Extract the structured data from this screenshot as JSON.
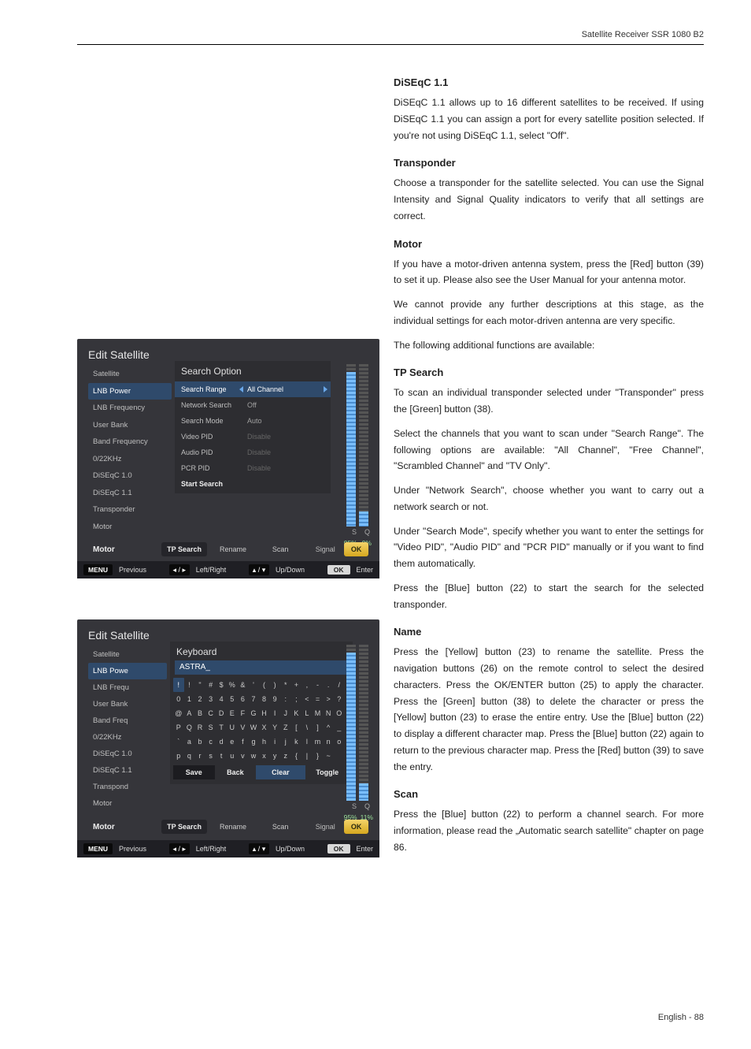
{
  "header": {
    "product": "Satellite Receiver SSR 1080 B2"
  },
  "footer": {
    "text": "English  -  88"
  },
  "doc": {
    "s1_title": "DiSEqC 1.1",
    "s1_p1": "DiSEqC 1.1 allows up to 16 different satellites to be received. If using DiSEqC 1.1 you can assign a port for every satellite position selected. If you're not using DiSEqC 1.1, select \"Off\".",
    "s2_title": "Transponder",
    "s2_p1": "Choose a transponder for the satellite selected. You can use the Signal Intensity and Signal Quality indicators to verify that all settings are correct.",
    "s3_title": "Motor",
    "s3_p1": "If you have a motor-driven antenna system, press the [Red] button (39) to set it up. Please also see the User Manual for your antenna motor.",
    "s3_p2": "We cannot provide any further descriptions at this stage, as the individual settings for each motor-driven antenna are very specific.",
    "s3_p3": "The following additional functions are available:",
    "s4_title": "TP Search",
    "s4_p1": "To scan an individual transponder selected under \"Transponder\" press the [Green] button (38).",
    "s4_p2": "Select the channels that you want to scan under \"Search Range\". The following options are available: \"All Channel\", \"Free Channel\", \"Scrambled Channel\" and \"TV Only\".",
    "s4_p3": "Under \"Network Search\", choose whether you want to carry out a network search or not.",
    "s4_p4": "Under \"Search Mode\", specify whether you want to enter the settings for \"Video PID\", \"Audio PID\" and \"PCR PID\" manually or if you want to find them automatically.",
    "s4_p5": "Press the [Blue] button (22) to start the search for the selected transponder.",
    "s5_title": "Name",
    "s5_p1": "Press the [Yellow] button (23) to rename the satellite. Press the navigation buttons (26) on the remote control to select the desired characters. Press the OK/ENTER button (25) to apply the character. Press the [Green] button (38) to delete the character or press the [Yellow] button (23) to erase the entire entry. Use the [Blue] button (22) to display a different character map. Press the [Blue] button (22) again to return to the previous character map. Press the [Red] button (39) to save the entry.",
    "s6_title": "Scan",
    "s6_p1": "Press the [Blue] button (22) to perform a channel search. For more information, please read the „Automatic search satellite\" chapter on page 86."
  },
  "shot1": {
    "title": "Edit Satellite",
    "left_items": [
      "Satellite",
      "LNB Power",
      "LNB Frequency",
      "User Bank",
      "Band Frequency",
      "0/22KHz",
      "DiSEqC 1.0",
      "DiSEqC 1.1",
      "Transponder",
      "Motor"
    ],
    "left_selected_index": 1,
    "panel_title": "Search Option",
    "rows": [
      {
        "label": "Search Range",
        "value": "All Channel",
        "selected": true
      },
      {
        "label": "Network Search",
        "value": "Off"
      },
      {
        "label": "Search Mode",
        "value": "Auto"
      },
      {
        "label": "Video PID",
        "value": "Disable",
        "dim": true
      },
      {
        "label": "Audio PID",
        "value": "Disable",
        "dim": true
      },
      {
        "label": "PCR PID",
        "value": "Disable",
        "dim": true
      },
      {
        "label": "Start Search",
        "value": "",
        "bold": true
      }
    ],
    "sq_labels": {
      "s": "S",
      "q": "Q"
    },
    "pct": {
      "s": "95%",
      "q": "9%"
    },
    "signal_fill_pct": {
      "s": 95,
      "q": 9
    },
    "bottom": {
      "motor": "Motor",
      "tp": "TP Search",
      "rename": "Rename",
      "scan": "Scan",
      "signal": "Signal",
      "ok": "OK"
    },
    "nav": {
      "menu": "MENU",
      "prev": "Previous",
      "lr": "◂ / ▸",
      "lr_text": "Left/Right",
      "ud": "▴ / ▾",
      "ud_text": "Up/Down",
      "ok": "OK",
      "enter": "Enter"
    }
  },
  "shot2": {
    "title": "Edit Satellite",
    "left_items": [
      "Satellite",
      "LNB Powe",
      "LNB Frequ",
      "User Bank",
      "Band Freq",
      "0/22KHz",
      "DiSEqC 1.0",
      "DiSEqC 1.1",
      "Transpond",
      "Motor"
    ],
    "left_selected_index": 1,
    "kbd_title": "Keyboard",
    "kbd_input": "ASTRA_",
    "rows": [
      [
        "!",
        "!",
        "\"",
        "#",
        "$",
        "%",
        "&",
        "'",
        "(",
        ")",
        "*",
        "+",
        ",",
        "-",
        ".",
        "/"
      ],
      [
        "0",
        "1",
        "2",
        "3",
        "4",
        "5",
        "6",
        "7",
        "8",
        "9",
        ":",
        ";",
        "<",
        "=",
        ">",
        "?"
      ],
      [
        "@",
        "A",
        "B",
        "C",
        "D",
        "E",
        "F",
        "G",
        "H",
        "I",
        "J",
        "K",
        "L",
        "M",
        "N",
        "O"
      ],
      [
        "P",
        "Q",
        "R",
        "S",
        "T",
        "U",
        "V",
        "W",
        "X",
        "Y",
        "Z",
        "[",
        "\\",
        "]",
        "^",
        "_"
      ],
      [
        "`",
        "a",
        "b",
        "c",
        "d",
        "e",
        "f",
        "g",
        "h",
        "i",
        "j",
        "k",
        "l",
        "m",
        "n",
        "o"
      ],
      [
        "p",
        "q",
        "r",
        "s",
        "t",
        "u",
        "v",
        "w",
        "x",
        "y",
        "z",
        "{",
        "|",
        "}",
        "~",
        " "
      ]
    ],
    "sel": {
      "row": 0,
      "col": 0
    },
    "actions": {
      "save": "Save",
      "back": "Back",
      "clear": "Clear",
      "toggle": "Toggle"
    },
    "sq_labels": {
      "s": "S",
      "q": "Q"
    },
    "pct": {
      "s": "95%",
      "q": "11%"
    },
    "signal_fill_pct": {
      "s": 95,
      "q": 11
    },
    "bottom": {
      "motor": "Motor",
      "tp": "TP Search",
      "rename": "Rename",
      "scan": "Scan",
      "signal": "Signal",
      "ok": "OK"
    },
    "nav": {
      "menu": "MENU",
      "prev": "Previous",
      "lr": "◂ / ▸",
      "lr_text": "Left/Right",
      "ud": "▴ / ▾",
      "ud_text": "Up/Down",
      "ok": "OK",
      "enter": "Enter"
    }
  },
  "colors": {
    "panel_bg": "#35353a",
    "highlight": "#2f4a6b",
    "ok_gold_top": "#f4d36a",
    "ok_gold_bot": "#d6a81f",
    "bar_fill_top": "#7abefc",
    "bar_fill_bot": "#4a8ed0"
  }
}
